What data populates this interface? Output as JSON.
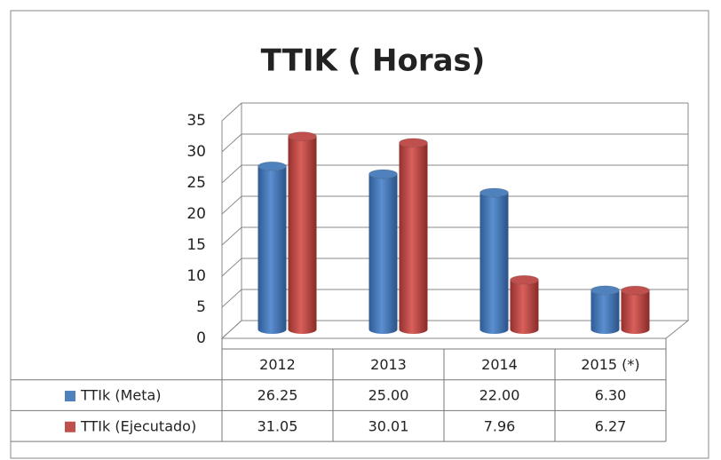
{
  "chart_data": {
    "type": "bar3d",
    "title": "TTIK ( Horas)",
    "categories": [
      "2012",
      "2013",
      "2014",
      "2015 (*)"
    ],
    "series": [
      {
        "name": "TTIk (Meta)",
        "color": "#4f81bd",
        "values": [
          26.25,
          25.0,
          22.0,
          6.3
        ],
        "value_labels": [
          "26.25",
          "25.00",
          "22.00",
          "6.30"
        ]
      },
      {
        "name": "TTIk (Ejecutado)",
        "color": "#c0504d",
        "values": [
          31.05,
          30.01,
          7.96,
          6.27
        ],
        "value_labels": [
          "31.05",
          "30.01",
          "7.96",
          "6.27"
        ]
      }
    ],
    "ylim": [
      0,
      35
    ],
    "yticks": [
      0,
      5,
      10,
      15,
      20,
      25,
      30,
      35
    ],
    "grid": true
  }
}
